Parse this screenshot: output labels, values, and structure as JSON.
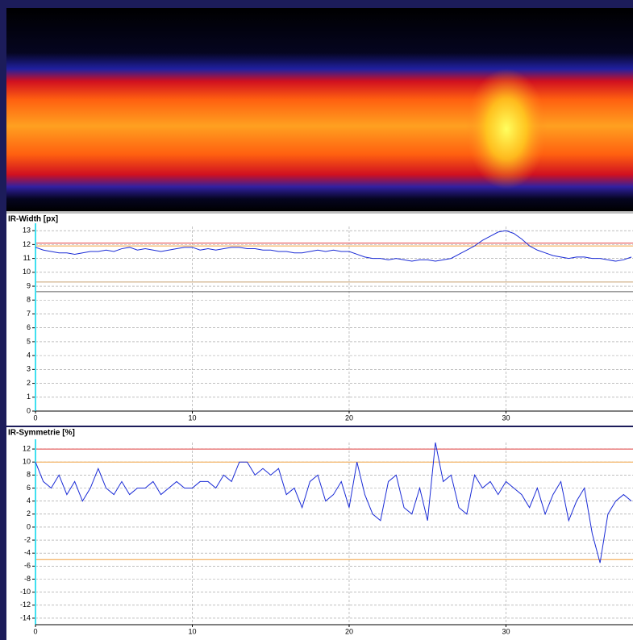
{
  "chart_data": [
    {
      "type": "line",
      "title": "IR-Width [px]",
      "x": [
        0,
        0.5,
        1,
        1.5,
        2,
        2.5,
        3,
        3.5,
        4,
        4.5,
        5,
        5.5,
        6,
        6.5,
        7,
        7.5,
        8,
        8.5,
        9,
        9.5,
        10,
        10.5,
        11,
        11.5,
        12,
        12.5,
        13,
        13.5,
        14,
        14.5,
        15,
        15.5,
        16,
        16.5,
        17,
        17.5,
        18,
        18.5,
        19,
        19.5,
        20,
        20.5,
        21,
        21.5,
        22,
        22.5,
        23,
        23.5,
        24,
        24.5,
        25,
        25.5,
        26,
        26.5,
        27,
        27.5,
        28,
        28.5,
        29,
        29.5,
        30,
        30.5,
        31,
        31.5,
        32,
        32.5,
        33,
        33.5,
        34,
        34.5,
        35,
        35.5,
        36,
        36.5,
        37,
        37.5,
        38
      ],
      "series": [
        {
          "color": "#1a2bd6",
          "values": [
            11.8,
            11.6,
            11.5,
            11.4,
            11.4,
            11.3,
            11.4,
            11.5,
            11.5,
            11.6,
            11.5,
            11.7,
            11.8,
            11.6,
            11.7,
            11.6,
            11.5,
            11.6,
            11.7,
            11.8,
            11.8,
            11.6,
            11.7,
            11.6,
            11.7,
            11.8,
            11.8,
            11.7,
            11.7,
            11.6,
            11.6,
            11.5,
            11.5,
            11.4,
            11.4,
            11.5,
            11.6,
            11.5,
            11.6,
            11.5,
            11.5,
            11.3,
            11.1,
            11.0,
            11.0,
            10.9,
            11.0,
            10.9,
            10.8,
            10.9,
            10.9,
            10.8,
            10.9,
            11.0,
            11.3,
            11.6,
            11.9,
            12.3,
            12.6,
            12.9,
            13.0,
            12.8,
            12.4,
            11.9,
            11.6,
            11.4,
            11.2,
            11.1,
            11.0,
            11.1,
            11.1,
            11.0,
            11.0,
            10.9,
            10.8,
            10.9,
            11.1
          ]
        }
      ],
      "limits": [
        {
          "value": 12.1,
          "color": "#e04040"
        },
        {
          "value": 11.9,
          "color": "#f0a040"
        },
        {
          "value": 9.3,
          "color": "#c8a070"
        },
        {
          "value": 8.6,
          "color": "#606060"
        }
      ],
      "xlim": [
        0,
        38.1
      ],
      "xticks": [
        0,
        10,
        20,
        30
      ],
      "ylim": [
        0,
        13.3
      ],
      "yticks": [
        0,
        1,
        2,
        3,
        4,
        5,
        6,
        7,
        8,
        9,
        10,
        11,
        12,
        13
      ],
      "grid": true
    },
    {
      "type": "line",
      "title": "IR-Symmetrie [%]",
      "x": [
        0,
        0.5,
        1,
        1.5,
        2,
        2.5,
        3,
        3.5,
        4,
        4.5,
        5,
        5.5,
        6,
        6.5,
        7,
        7.5,
        8,
        8.5,
        9,
        9.5,
        10,
        10.5,
        11,
        11.5,
        12,
        12.5,
        13,
        13.5,
        14,
        14.5,
        15,
        15.5,
        16,
        16.5,
        17,
        17.5,
        18,
        18.5,
        19,
        19.5,
        20,
        20.5,
        21,
        21.5,
        22,
        22.5,
        23,
        23.5,
        24,
        24.5,
        25,
        25.5,
        26,
        26.5,
        27,
        27.5,
        28,
        28.5,
        29,
        29.5,
        30,
        30.5,
        31,
        31.5,
        32,
        32.5,
        33,
        33.5,
        34,
        34.5,
        35,
        35.5,
        36,
        36.5,
        37,
        37.5,
        38
      ],
      "series": [
        {
          "color": "#1a2bd6",
          "values": [
            10,
            7,
            6,
            8,
            5,
            7,
            4,
            6,
            9,
            6,
            5,
            7,
            5,
            6,
            6,
            7,
            5,
            6,
            7,
            6,
            6,
            7,
            7,
            6,
            8,
            7,
            10,
            10,
            8,
            9,
            8,
            9,
            5,
            6,
            3,
            7,
            8,
            4,
            5,
            7,
            3,
            10,
            5,
            2,
            1,
            7,
            8,
            3,
            2,
            6,
            1,
            13,
            7,
            8,
            3,
            2,
            8,
            6,
            7,
            5,
            7,
            6,
            5,
            3,
            6,
            2,
            5,
            7,
            1,
            4,
            6,
            -1,
            -5.5,
            2,
            4,
            5,
            4
          ]
        }
      ],
      "limits": [
        {
          "value": 12,
          "color": "#e04040"
        },
        {
          "value": 10,
          "color": "#f0a040"
        },
        {
          "value": -5,
          "color": "#f0a040"
        },
        {
          "value": -15,
          "color": "#e04040"
        }
      ],
      "xlim": [
        0,
        38.1
      ],
      "xticks": [
        0,
        10,
        20,
        30
      ],
      "ylim": [
        -15,
        13
      ],
      "yticks": [
        12,
        10,
        8,
        6,
        4,
        2,
        0,
        -2,
        -4,
        -6,
        -8,
        -10,
        -12,
        -14
      ],
      "grid": true
    }
  ]
}
